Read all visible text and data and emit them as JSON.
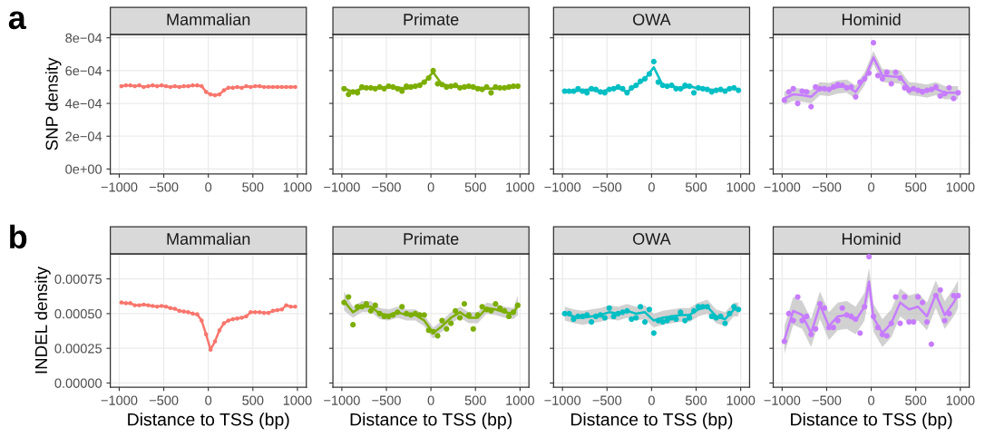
{
  "chart_data": [
    {
      "type": "line",
      "marker": "circle",
      "title": "Mammalian",
      "ylabel": "SNP density",
      "annotations": [
        "a"
      ],
      "xlim": [
        -1100,
        1100
      ],
      "xticks": [
        -1000,
        -500,
        0,
        500,
        1000
      ],
      "ylim": [
        -3e-05,
        0.00082
      ],
      "yticks": [
        {
          "value": 0,
          "label": "0e+00"
        },
        {
          "value": 0.0002,
          "label": "2e−04"
        },
        {
          "value": 0.0004,
          "label": "4e−04"
        },
        {
          "value": 0.0006,
          "label": "6e−04"
        },
        {
          "value": 0.0008,
          "label": "8e−04"
        }
      ],
      "grid": true,
      "x": [
        -975,
        -925,
        -875,
        -825,
        -775,
        -725,
        -675,
        -625,
        -575,
        -525,
        -475,
        -425,
        -375,
        -325,
        -275,
        -225,
        -175,
        -125,
        -75,
        -25,
        25,
        75,
        125,
        175,
        225,
        275,
        325,
        375,
        425,
        475,
        525,
        575,
        625,
        675,
        725,
        775,
        825,
        875,
        925,
        975
      ],
      "series": [
        {
          "color": "#f8766d",
          "values": [
            0.000505,
            0.00051,
            0.00051,
            0.000505,
            0.00051,
            0.0005,
            0.000505,
            0.00051,
            0.000505,
            0.00051,
            0.000505,
            0.0005,
            0.000505,
            0.0005,
            0.000505,
            0.000505,
            0.00051,
            0.00051,
            0.000505,
            0.00047,
            0.000455,
            0.00045,
            0.000455,
            0.00048,
            0.000495,
            0.000495,
            0.0005,
            0.000495,
            0.000505,
            0.0005,
            0.000505,
            0.000505,
            0.0005,
            0.0005,
            0.0005,
            0.0005,
            0.0005,
            0.0005,
            0.0005,
            0.0005
          ]
        }
      ]
    },
    {
      "type": "scatter",
      "title": "Primate",
      "tick_labels": "x",
      "xlim": [
        -1100,
        1100
      ],
      "xticks": [
        -1000,
        -500,
        0,
        500,
        1000
      ],
      "ylim": [
        -3e-05,
        0.00082
      ],
      "yticks": [
        0,
        0.0002,
        0.0004,
        0.0006,
        0.0008
      ],
      "grid": true,
      "x": [
        -975,
        -925,
        -875,
        -825,
        -775,
        -725,
        -675,
        -625,
        -575,
        -525,
        -475,
        -425,
        -375,
        -325,
        -275,
        -225,
        -175,
        -125,
        -75,
        -25,
        25,
        75,
        125,
        175,
        225,
        275,
        325,
        375,
        425,
        475,
        525,
        575,
        625,
        675,
        725,
        775,
        825,
        875,
        925,
        975
      ],
      "series": [
        {
          "type": "line",
          "color": "#7cae00",
          "x": [
            -975,
            -875,
            -775,
            -675,
            -575,
            -475,
            -375,
            -275,
            -175,
            -75,
            25,
            125,
            225,
            325,
            425,
            525,
            625,
            725,
            825,
            925,
            975
          ],
          "values": [
            0.00049,
            0.00047,
            0.00049,
            0.000495,
            0.000495,
            0.0005,
            0.000495,
            0.00049,
            0.000505,
            0.00053,
            0.00059,
            0.000515,
            0.000505,
            0.0005,
            0.0005,
            0.000495,
            0.00049,
            0.00049,
            0.000495,
            0.0005,
            0.000505
          ],
          "lower": [
            0.00048,
            0.00046,
            0.00048,
            0.000485,
            0.000485,
            0.00049,
            0.000485,
            0.00048,
            0.000495,
            0.00052,
            0.00058,
            0.000505,
            0.000495,
            0.00049,
            0.00049,
            0.000485,
            0.00048,
            0.00048,
            0.000485,
            0.00049,
            0.000495
          ],
          "upper": [
            0.0005,
            0.00048,
            0.0005,
            0.000505,
            0.000505,
            0.00051,
            0.000505,
            0.0005,
            0.000515,
            0.00054,
            0.0006,
            0.000525,
            0.000515,
            0.00051,
            0.00051,
            0.000505,
            0.0005,
            0.0005,
            0.000505,
            0.00051,
            0.000515
          ]
        },
        {
          "marker": "circle",
          "color": "#7cae00",
          "values": [
            0.00049,
            0.000455,
            0.00047,
            0.000465,
            0.0005,
            0.000495,
            0.000495,
            0.00049,
            0.0005,
            0.00049,
            0.000505,
            0.0005,
            0.00049,
            0.000475,
            0.000505,
            0.0005,
            0.000505,
            0.00051,
            0.00053,
            0.000555,
            0.0006,
            0.00052,
            0.000515,
            0.0005,
            0.000505,
            0.00051,
            0.000495,
            0.0005,
            0.000505,
            0.0005,
            0.00049,
            0.000485,
            0.0005,
            0.000465,
            0.0005,
            0.000495,
            0.000495,
            0.0005,
            0.000505,
            0.000505
          ]
        }
      ]
    },
    {
      "type": "scatter",
      "title": "OWA",
      "tick_labels": "x",
      "xlim": [
        -1100,
        1100
      ],
      "xticks": [
        -1000,
        -500,
        0,
        500,
        1000
      ],
      "ylim": [
        -3e-05,
        0.00082
      ],
      "yticks": [
        0,
        0.0002,
        0.0004,
        0.0006,
        0.0008
      ],
      "grid": true,
      "x": [
        -975,
        -925,
        -875,
        -825,
        -775,
        -725,
        -675,
        -625,
        -575,
        -525,
        -475,
        -425,
        -375,
        -325,
        -275,
        -225,
        -175,
        -125,
        -75,
        -25,
        25,
        75,
        125,
        175,
        225,
        275,
        325,
        375,
        425,
        475,
        525,
        575,
        625,
        675,
        725,
        775,
        825,
        875,
        925,
        975
      ],
      "series": [
        {
          "type": "line",
          "color": "#00bfc4",
          "x": [
            -975,
            -875,
            -775,
            -675,
            -575,
            -475,
            -375,
            -275,
            -175,
            -75,
            25,
            125,
            225,
            325,
            425,
            525,
            625,
            725,
            825,
            925,
            975
          ],
          "values": [
            0.000475,
            0.000475,
            0.00048,
            0.000485,
            0.00047,
            0.000485,
            0.000495,
            0.00047,
            0.00051,
            0.00055,
            0.00062,
            0.00051,
            0.000505,
            0.00049,
            0.000505,
            0.00049,
            0.000485,
            0.00048,
            0.00048,
            0.000495,
            0.00048
          ],
          "lower": [
            0.000465,
            0.000465,
            0.00047,
            0.000475,
            0.00046,
            0.000475,
            0.000485,
            0.00046,
            0.0005,
            0.00054,
            0.00061,
            0.0005,
            0.000495,
            0.00048,
            0.000495,
            0.00048,
            0.000475,
            0.00047,
            0.00047,
            0.000485,
            0.00047
          ],
          "upper": [
            0.000485,
            0.000485,
            0.00049,
            0.000495,
            0.00048,
            0.000495,
            0.000505,
            0.00048,
            0.00052,
            0.00056,
            0.00063,
            0.00052,
            0.000515,
            0.0005,
            0.000515,
            0.0005,
            0.000495,
            0.00049,
            0.00049,
            0.000505,
            0.00049
          ]
        },
        {
          "marker": "circle",
          "color": "#00bfc4",
          "values": [
            0.000475,
            0.000475,
            0.000475,
            0.00049,
            0.000475,
            0.000465,
            0.00049,
            0.000485,
            0.00047,
            0.000465,
            0.000485,
            0.00049,
            0.0005,
            0.00049,
            0.000465,
            0.000495,
            0.00051,
            0.000535,
            0.00055,
            0.00058,
            0.000655,
            0.00053,
            0.00051,
            0.000505,
            0.00051,
            0.00049,
            0.00049,
            0.00051,
            0.000505,
            0.000465,
            0.000495,
            0.00049,
            0.000485,
            0.00047,
            0.00048,
            0.000485,
            0.000475,
            0.00049,
            0.000495,
            0.00048
          ]
        }
      ]
    },
    {
      "type": "scatter",
      "title": "Hominid",
      "tick_labels": "x",
      "xlim": [
        -1100,
        1100
      ],
      "xticks": [
        -1000,
        -500,
        0,
        500,
        1000
      ],
      "ylim": [
        -3e-05,
        0.00082
      ],
      "yticks": [
        0,
        0.0002,
        0.0004,
        0.0006,
        0.0008
      ],
      "grid": true,
      "x": [
        -975,
        -925,
        -875,
        -825,
        -775,
        -725,
        -675,
        -625,
        -575,
        -525,
        -475,
        -425,
        -375,
        -325,
        -275,
        -225,
        -175,
        -125,
        -75,
        -25,
        25,
        75,
        125,
        175,
        225,
        275,
        325,
        375,
        425,
        475,
        525,
        575,
        625,
        675,
        725,
        775,
        825,
        875,
        925,
        975
      ],
      "series": [
        {
          "type": "line",
          "color": "#c77cff",
          "x": [
            -975,
            -875,
            -775,
            -675,
            -575,
            -475,
            -375,
            -275,
            -175,
            -75,
            25,
            125,
            225,
            325,
            425,
            525,
            625,
            725,
            825,
            925,
            975
          ],
          "values": [
            0.00043,
            0.000455,
            0.00045,
            0.00044,
            0.00049,
            0.000485,
            0.0005,
            0.000505,
            0.00047,
            0.00055,
            0.00068,
            0.00057,
            0.000565,
            0.00056,
            0.00049,
            0.000485,
            0.000475,
            0.00049,
            0.000465,
            0.000465,
            0.000465
          ],
          "lower": [
            0.00039,
            0.000415,
            0.00041,
            0.0004,
            0.00045,
            0.000445,
            0.00046,
            0.000465,
            0.00043,
            0.00051,
            0.00064,
            0.00053,
            0.000525,
            0.00052,
            0.00045,
            0.000445,
            0.000435,
            0.00045,
            0.000425,
            0.000425,
            0.000425
          ],
          "upper": [
            0.00047,
            0.000495,
            0.00049,
            0.00048,
            0.00053,
            0.000525,
            0.00054,
            0.000545,
            0.00051,
            0.00059,
            0.00072,
            0.00061,
            0.000605,
            0.0006,
            0.00053,
            0.000525,
            0.000515,
            0.00053,
            0.000505,
            0.000505,
            0.000505
          ]
        },
        {
          "marker": "circle",
          "color": "#c77cff",
          "values": [
            0.00042,
            0.00047,
            0.00049,
            0.0004,
            0.000475,
            0.00047,
            0.00038,
            0.0005,
            0.00049,
            0.00049,
            0.000485,
            0.0005,
            0.000515,
            0.00051,
            0.000495,
            0.0005,
            0.00044,
            0.00053,
            0.00055,
            0.000585,
            0.00077,
            0.00057,
            0.00055,
            0.00059,
            0.00052,
            0.00059,
            0.000555,
            0.000495,
            0.00048,
            0.00049,
            0.00048,
            0.00047,
            0.00048,
            0.000485,
            0.0005,
            0.000445,
            0.00046,
            0.000495,
            0.00043,
            0.000465
          ]
        }
      ]
    },
    {
      "type": "line",
      "marker": "circle",
      "title": "Mammalian",
      "ylabel": "INDEL density",
      "xlabel": "Distance to TSS (bp)",
      "annotations": [
        "b"
      ],
      "xlim": [
        -1100,
        1100
      ],
      "xticks": [
        -1000,
        -500,
        0,
        500,
        1000
      ],
      "ylim": [
        -3e-05,
        0.00093
      ],
      "yticks": [
        {
          "value": 0,
          "label": "0.00000"
        },
        {
          "value": 0.00025,
          "label": "0.00025"
        },
        {
          "value": 0.0005,
          "label": "0.00050"
        },
        {
          "value": 0.00075,
          "label": "0.00075"
        }
      ],
      "grid": true,
      "x": [
        -975,
        -925,
        -875,
        -825,
        -775,
        -725,
        -675,
        -625,
        -575,
        -525,
        -475,
        -425,
        -375,
        -325,
        -275,
        -225,
        -175,
        -125,
        -75,
        -25,
        25,
        75,
        125,
        175,
        225,
        275,
        325,
        375,
        425,
        475,
        525,
        575,
        625,
        675,
        725,
        775,
        825,
        875,
        925,
        975
      ],
      "series": [
        {
          "color": "#f8766d",
          "values": [
            0.00058,
            0.000575,
            0.000575,
            0.00056,
            0.00056,
            0.000565,
            0.00056,
            0.000555,
            0.00055,
            0.000555,
            0.00055,
            0.00054,
            0.000535,
            0.00052,
            0.000515,
            0.00051,
            0.0005,
            0.000495,
            0.00045,
            0.00035,
            0.00024,
            0.0003,
            0.00038,
            0.00043,
            0.00045,
            0.00046,
            0.000465,
            0.00047,
            0.00048,
            0.00051,
            0.00051,
            0.00051,
            0.000505,
            0.000505,
            0.00052,
            0.000525,
            0.00053,
            0.00056,
            0.00055,
            0.00055
          ]
        }
      ]
    },
    {
      "type": "scatter",
      "title": "Primate",
      "xlabel": "Distance to TSS (bp)",
      "tick_labels": "x",
      "xlim": [
        -1100,
        1100
      ],
      "xticks": [
        -1000,
        -500,
        0,
        500,
        1000
      ],
      "ylim": [
        -3e-05,
        0.00093
      ],
      "yticks": [
        0,
        0.00025,
        0.0005,
        0.00075
      ],
      "grid": true,
      "x": [
        -975,
        -925,
        -875,
        -825,
        -775,
        -725,
        -675,
        -625,
        -575,
        -525,
        -475,
        -425,
        -375,
        -325,
        -275,
        -225,
        -175,
        -125,
        -75,
        -25,
        25,
        75,
        125,
        175,
        225,
        275,
        325,
        375,
        425,
        475,
        525,
        575,
        625,
        675,
        725,
        775,
        825,
        875,
        925,
        975
      ],
      "series": [
        {
          "type": "line",
          "color": "#7cae00",
          "x": [
            -975,
            -875,
            -775,
            -675,
            -575,
            -475,
            -375,
            -275,
            -175,
            -75,
            25,
            125,
            225,
            325,
            425,
            525,
            625,
            725,
            825,
            925,
            975
          ],
          "values": [
            0.00059,
            0.00051,
            0.00055,
            0.00055,
            0.0005,
            0.00049,
            0.00051,
            0.00049,
            0.00049,
            0.00045,
            0.00036,
            0.00041,
            0.00047,
            0.00051,
            0.00047,
            0.00047,
            0.00054,
            0.00053,
            0.00051,
            0.0005,
            0.00056
          ],
          "lower": [
            0.00052,
            0.00047,
            0.00051,
            0.00051,
            0.00046,
            0.00045,
            0.00047,
            0.00045,
            0.00045,
            0.00041,
            0.00032,
            0.00037,
            0.00043,
            0.00047,
            0.00043,
            0.00043,
            0.0005,
            0.00049,
            0.00047,
            0.00046,
            0.00049
          ],
          "upper": [
            0.00066,
            0.00055,
            0.00059,
            0.00059,
            0.00054,
            0.00053,
            0.00055,
            0.00053,
            0.00053,
            0.00049,
            0.0004,
            0.00045,
            0.00051,
            0.00055,
            0.00051,
            0.00051,
            0.00058,
            0.00057,
            0.00055,
            0.00054,
            0.00063
          ]
        },
        {
          "marker": "circle",
          "color": "#7cae00",
          "values": [
            0.00058,
            0.00062,
            0.00042,
            0.00055,
            0.00055,
            0.00057,
            0.00052,
            0.00056,
            0.0005,
            0.00048,
            0.00048,
            0.00049,
            0.00051,
            0.00055,
            0.0005,
            0.00049,
            0.0005,
            0.00049,
            0.00049,
            0.00038,
            0.00037,
            0.00034,
            0.00045,
            0.00039,
            0.00043,
            0.00052,
            0.00047,
            0.00057,
            0.00049,
            0.00039,
            0.00049,
            0.00055,
            0.00053,
            0.00052,
            0.00057,
            0.00054,
            0.00052,
            0.00048,
            0.00051,
            0.00056
          ]
        }
      ]
    },
    {
      "type": "scatter",
      "title": "OWA",
      "xlabel": "Distance to TSS (bp)",
      "tick_labels": "x",
      "xlim": [
        -1100,
        1100
      ],
      "xticks": [
        -1000,
        -500,
        0,
        500,
        1000
      ],
      "ylim": [
        -3e-05,
        0.00093
      ],
      "yticks": [
        0,
        0.00025,
        0.0005,
        0.00075
      ],
      "grid": true,
      "x": [
        -975,
        -925,
        -875,
        -825,
        -775,
        -725,
        -675,
        -625,
        -575,
        -525,
        -475,
        -425,
        -375,
        -325,
        -275,
        -225,
        -175,
        -125,
        -75,
        -25,
        25,
        75,
        125,
        175,
        225,
        275,
        325,
        375,
        425,
        475,
        525,
        575,
        625,
        675,
        725,
        775,
        825,
        875,
        925,
        975
      ],
      "series": [
        {
          "type": "line",
          "color": "#00bfc4",
          "x": [
            -975,
            -875,
            -775,
            -675,
            -575,
            -475,
            -375,
            -275,
            -175,
            -75,
            25,
            125,
            225,
            325,
            425,
            525,
            625,
            725,
            825,
            925,
            975
          ],
          "values": [
            0.0005,
            0.00048,
            0.00047,
            0.00048,
            0.00049,
            0.00051,
            0.0005,
            0.00052,
            0.0005,
            0.00051,
            0.00045,
            0.00047,
            0.00048,
            0.00049,
            0.00049,
            0.00053,
            0.00055,
            0.00048,
            0.00046,
            0.00053,
            0.00053
          ],
          "lower": [
            0.00045,
            0.00043,
            0.00042,
            0.00043,
            0.00044,
            0.00046,
            0.00045,
            0.00047,
            0.00045,
            0.00046,
            0.0004,
            0.00042,
            0.00043,
            0.00044,
            0.00044,
            0.00048,
            0.0005,
            0.00043,
            0.00041,
            0.00048,
            0.00048
          ],
          "upper": [
            0.00055,
            0.00053,
            0.00052,
            0.00053,
            0.00054,
            0.00056,
            0.00055,
            0.00057,
            0.00055,
            0.00056,
            0.0005,
            0.00052,
            0.00053,
            0.00054,
            0.00054,
            0.00058,
            0.0006,
            0.00053,
            0.00051,
            0.00058,
            0.00058
          ]
        },
        {
          "marker": "circle",
          "color": "#00bfc4",
          "values": [
            0.0005,
            0.0005,
            0.00046,
            0.00048,
            0.00048,
            0.00049,
            0.00044,
            0.00048,
            0.00049,
            0.00047,
            0.00054,
            0.00048,
            0.0005,
            0.00051,
            0.00052,
            0.00046,
            0.00047,
            0.00055,
            0.00044,
            0.00053,
            0.00036,
            0.00045,
            0.00044,
            0.00045,
            0.00047,
            0.00046,
            0.00051,
            0.00045,
            0.00047,
            0.00052,
            0.00055,
            0.00055,
            0.00055,
            0.00048,
            0.00047,
            0.00048,
            0.00043,
            0.0005,
            0.00055,
            0.00053
          ]
        }
      ]
    },
    {
      "type": "scatter",
      "title": "Hominid",
      "xlabel": "Distance to TSS (bp)",
      "tick_labels": "x",
      "xlim": [
        -1100,
        1100
      ],
      "xticks": [
        -1000,
        -500,
        0,
        500,
        1000
      ],
      "ylim": [
        -3e-05,
        0.00093
      ],
      "yticks": [
        0,
        0.00025,
        0.0005,
        0.00075
      ],
      "grid": true,
      "x": [
        -975,
        -925,
        -875,
        -825,
        -775,
        -725,
        -675,
        -625,
        -575,
        -525,
        -475,
        -425,
        -375,
        -325,
        -275,
        -225,
        -175,
        -125,
        -75,
        -25,
        25,
        75,
        125,
        175,
        225,
        275,
        325,
        375,
        425,
        475,
        525,
        575,
        625,
        675,
        725,
        775,
        825,
        875,
        925,
        975
      ],
      "series": [
        {
          "type": "line",
          "color": "#c77cff",
          "x": [
            -975,
            -875,
            -775,
            -675,
            -575,
            -475,
            -375,
            -275,
            -175,
            -75,
            -25,
            25,
            125,
            225,
            325,
            425,
            525,
            625,
            725,
            825,
            925,
            975
          ],
          "values": [
            0.00031,
            0.00052,
            0.00049,
            0.00036,
            0.00056,
            0.00041,
            0.00048,
            0.00049,
            0.00045,
            0.00055,
            0.00073,
            0.00047,
            0.00036,
            0.00043,
            0.00058,
            0.00053,
            0.00055,
            0.00048,
            0.00064,
            0.00049,
            0.00058,
            0.00064
          ],
          "lower": [
            0.00021,
            0.00042,
            0.00039,
            0.00026,
            0.00046,
            0.00031,
            0.00038,
            0.00039,
            0.00035,
            0.00045,
            0.00063,
            0.00037,
            0.00026,
            0.00033,
            0.00048,
            0.00043,
            0.00045,
            0.00038,
            0.00054,
            0.00039,
            0.00048,
            0.00054
          ],
          "upper": [
            0.00041,
            0.00062,
            0.00059,
            0.00046,
            0.00066,
            0.00051,
            0.00058,
            0.00059,
            0.00055,
            0.00065,
            0.00083,
            0.00057,
            0.00046,
            0.00053,
            0.00068,
            0.00063,
            0.00065,
            0.00058,
            0.00074,
            0.00059,
            0.00068,
            0.00074
          ]
        },
        {
          "marker": "circle",
          "color": "#c77cff",
          "values": [
            0.0003,
            0.0005,
            0.00045,
            0.00062,
            0.00045,
            0.00048,
            0.00035,
            0.00039,
            0.00057,
            0.00054,
            0.0004,
            0.0004,
            0.00045,
            0.00054,
            0.00049,
            0.00048,
            0.00046,
            0.00036,
            0.00055,
            0.00091,
            0.00048,
            0.0004,
            0.00035,
            0.00034,
            0.00043,
            0.00062,
            0.00043,
            0.00062,
            0.00044,
            0.00044,
            0.00062,
            0.00058,
            0.00044,
            0.00028,
            0.00063,
            0.00067,
            0.00045,
            0.0005,
            0.00063,
            0.00063
          ]
        }
      ]
    }
  ]
}
